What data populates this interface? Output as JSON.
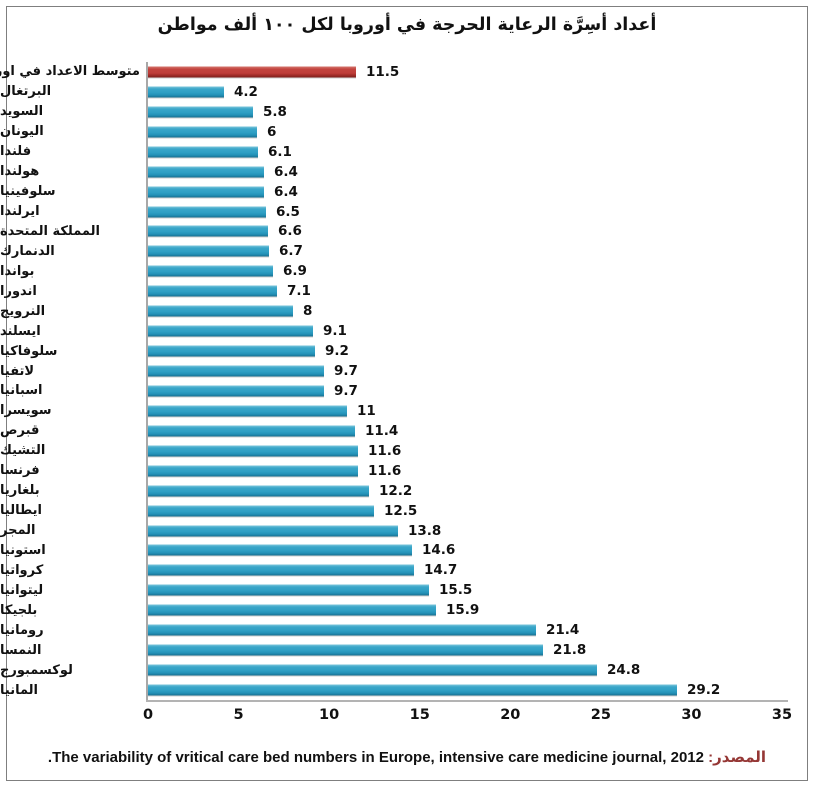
{
  "title": "أعداد أسِرَّة الرعاية الحرجة في أوروبا لكل ١٠٠ ألف مواطن",
  "source": {
    "label": "المصدر:",
    "text": "The variability of vritical care bed numbers in Europe, intensive care medicine journal, 2012."
  },
  "colors": {
    "bar_teal": "#2f9fc4",
    "bar_highlight_red": "#bf3d39",
    "axis_gray": "#a8a8a8",
    "source_label_red": "#953735"
  },
  "chart_data": {
    "type": "bar",
    "orientation": "horizontal",
    "title": "أعداد أسِرَّة الرعاية الحرجة في أوروبا لكل ١٠٠ ألف مواطن",
    "categories": [
      "متوسط الاعداد في اوروبا",
      "البرتغال",
      "السويد",
      "اليونان",
      "فلندا",
      "هولندا",
      "سلوفينيا",
      "ايرلندا",
      "المملكة المتحدة",
      "الدنمارك",
      "بواندا",
      "اندورا",
      "النرويج",
      "ايسلند",
      "سلوفاكيا",
      "لاتفيا",
      "اسبانيا",
      "سويسرا",
      "قبرص",
      "التشيك",
      "فرنسا",
      "بلغاريا",
      "ايطاليا",
      "المجر",
      "استونيا",
      "كرواتيا",
      "ليتوانيا",
      "بلجيكا",
      "رومانيا",
      "النمسا",
      "لوكسمبورج",
      "المانيا"
    ],
    "values": [
      11.5,
      4.2,
      5.8,
      6,
      6.1,
      6.4,
      6.4,
      6.5,
      6.6,
      6.7,
      6.9,
      7.1,
      8,
      9.1,
      9.2,
      9.7,
      9.7,
      11,
      11.4,
      11.6,
      11.6,
      12.2,
      12.5,
      13.8,
      14.6,
      14.7,
      15.5,
      15.9,
      21.4,
      21.8,
      24.8,
      29.2
    ],
    "value_labels": [
      "11.5",
      "4.2",
      "5.8",
      "6",
      "6.1",
      "6.4",
      "6.4",
      "6.5",
      "6.6",
      "6.7",
      "6.9",
      "7.1",
      "8",
      "9.1",
      "9.2",
      "9.7",
      "9.7",
      "11",
      "11.4",
      "11.6",
      "11.6",
      "12.2",
      "12.5",
      "13.8",
      "14.6",
      "14.7",
      "15.5",
      "15.9",
      "21.4",
      "21.8",
      "24.8",
      "29.2"
    ],
    "highlight_index": 0,
    "xlim": [
      0,
      35
    ],
    "xticks": [
      0,
      5,
      10,
      15,
      20,
      25,
      30,
      35
    ],
    "grid": false,
    "legend": false
  }
}
